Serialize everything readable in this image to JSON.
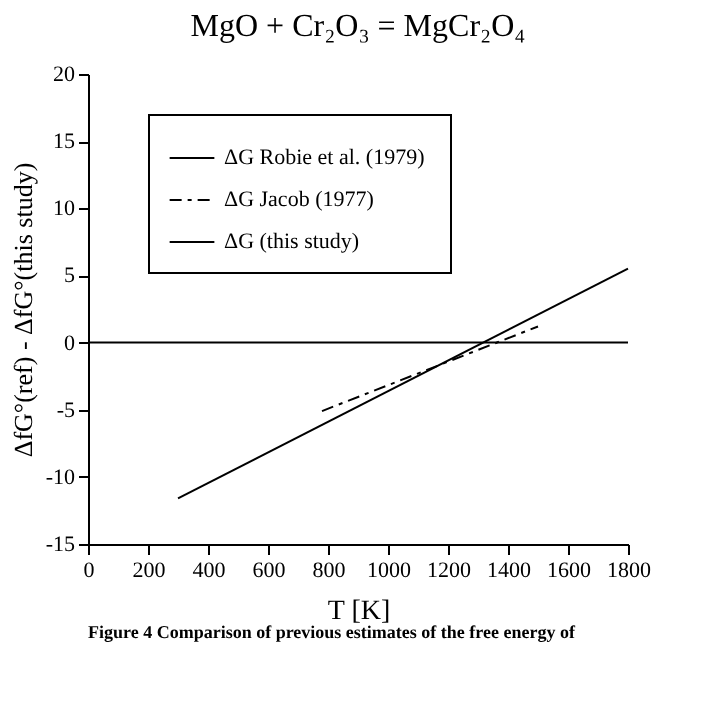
{
  "chart_data": {
    "type": "line",
    "title": "MgO + Cr₂O₃ = MgCr₂O₄",
    "xlabel": "T [K]",
    "ylabel": "ΔfG°(ref) - ΔfG°(this study)",
    "annotations": [
      "Figure 4  Comparison of previous estimates of the free energy of"
    ],
    "series": [
      {
        "name": "ΔG  Robie et al. (1979)",
        "color": "#000000",
        "line_style": "solid",
        "x": [
          300,
          1800
        ],
        "values": [
          -11.6,
          5.5
        ]
      },
      {
        "name": "ΔG  Jacob (1977)",
        "color": "#000000",
        "line_style": "dashed",
        "x": [
          780,
          1500
        ],
        "values": [
          -5.1,
          1.2
        ]
      },
      {
        "name": "ΔG  (this study)",
        "color": "#000000",
        "line_style": "solid",
        "x": [
          0,
          1800
        ],
        "values": [
          0,
          0
        ]
      }
    ],
    "xlim": [
      0,
      1800
    ],
    "xticks": [
      0,
      200,
      400,
      600,
      800,
      1000,
      1200,
      1400,
      1600,
      1800
    ],
    "ylim": [
      -15,
      20
    ],
    "yticks": [
      -15,
      -10,
      -5,
      0,
      5,
      10,
      15,
      20
    ],
    "grid": false,
    "legend": "top left",
    "marker": "none"
  }
}
